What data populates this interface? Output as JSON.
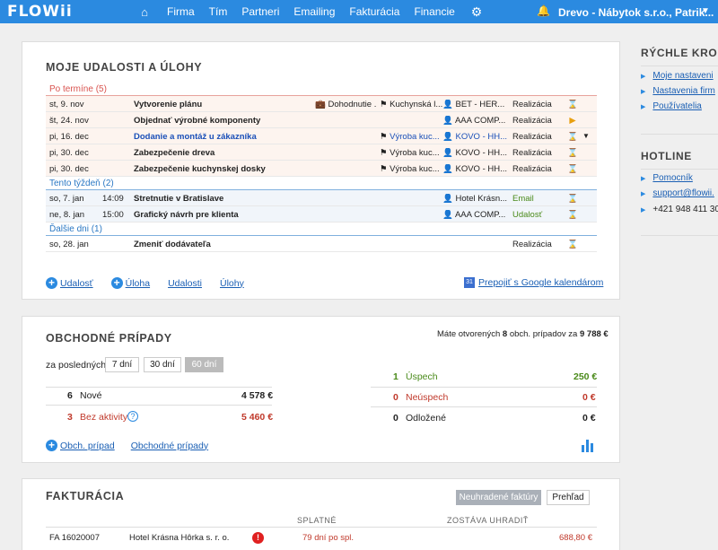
{
  "topbar": {
    "logo": "FLOWii",
    "nav": [
      "Firma",
      "Tím",
      "Partneri",
      "Emailing",
      "Fakturácia",
      "Financie"
    ],
    "company": "Drevo - Nábytok s.r.o., Patrik..."
  },
  "events": {
    "title": "MOJE UDALOSTI A ÚLOHY",
    "sections": [
      {
        "label": "Po termíne (5)"
      },
      {
        "label": "Tento týždeň (2)"
      },
      {
        "label": "Ďalšie dni (1)"
      }
    ],
    "rows": [
      {
        "date": "st, 9. nov",
        "time": "",
        "title": "Vytvorenie plánu",
        "place": "Dohodnutie ...",
        "category": "Kuchynská l...",
        "company": "BET - HER...",
        "type": "Realizácia",
        "status": "hourglass"
      },
      {
        "date": "št, 24. nov",
        "time": "",
        "title": "Objednať výrobné komponenty",
        "place": "",
        "category": "",
        "company": "AAA COMP...",
        "type": "Realizácia",
        "status": "play"
      },
      {
        "date": "pi, 16. dec",
        "time": "",
        "title": "Dodanie a montáž u zákazníka",
        "place": "",
        "category": "Výroba kuc...",
        "company": "KOVO - HH...",
        "type": "Realizácia",
        "status": "hourglass"
      },
      {
        "date": "pi, 30. dec",
        "time": "",
        "title": "Zabezpečenie dreva",
        "place": "",
        "category": "Výroba kuc...",
        "company": "KOVO - HH...",
        "type": "Realizácia",
        "status": "hourglass"
      },
      {
        "date": "pi, 30. dec",
        "time": "",
        "title": "Zabezpečenie kuchynskej dosky",
        "place": "",
        "category": "Výroba kuc...",
        "company": "KOVO - HH...",
        "type": "Realizácia",
        "status": "hourglass"
      },
      {
        "date": "so, 7. jan",
        "time": "14:09",
        "title": "Stretnutie v Bratislave",
        "place": "",
        "category": "",
        "company": "Hotel Krásn...",
        "type": "Email",
        "status": "hourglass"
      },
      {
        "date": "ne, 8. jan",
        "time": "15:00",
        "title": "Grafický návrh pre klienta",
        "place": "",
        "category": "",
        "company": "AAA COMP...",
        "type": "Udalosť",
        "status": "hourglass"
      },
      {
        "date": "so, 28. jan",
        "time": "",
        "title": "Zmeniť dodávateľa",
        "place": "",
        "category": "",
        "company": "",
        "type": "Realizácia",
        "status": "hourglass"
      }
    ],
    "actions": {
      "add_event": "Udalosť",
      "add_task": "Úloha",
      "events_link": "Udalosti",
      "tasks_link": "Úlohy",
      "google": "Prepojiť s Google kalendárom"
    }
  },
  "deals": {
    "title": "OBCHODNÉ PRÍPADY",
    "summary_prefix": "Máte otvorených",
    "summary_count": "8",
    "summary_mid": "obch. prípadov za",
    "summary_total": "9 788 €",
    "period_label": "za posledných",
    "periods": [
      "7 dní",
      "30 dní",
      "60 dní"
    ],
    "stats_left": [
      {
        "count": "6",
        "label": "Nové",
        "value": "4 578 €"
      },
      {
        "count": "3",
        "label": "Bez aktivity",
        "value": "5 460 €"
      }
    ],
    "stats_right": [
      {
        "count": "1",
        "label": "Úspech",
        "value": "250 €"
      },
      {
        "count": "0",
        "label": "Neúspech",
        "value": "0 €"
      },
      {
        "count": "0",
        "label": "Odložené",
        "value": "0 €"
      }
    ],
    "add_label": "Obch. prípad",
    "link_label": "Obchodné prípady"
  },
  "invoicing": {
    "title": "FAKTURÁCIA",
    "btn_unpaid": "Neuhradené faktúry",
    "btn_overview": "Prehľad",
    "col_due": "SPLATNÉ",
    "col_remaining": "ZOSTÁVA UHRADIŤ",
    "rows": [
      {
        "number": "FA 16020007",
        "client": "Hotel Krásna Hôrka s. r. o.",
        "due": "79 dní po spl.",
        "amount": "688,80 €"
      }
    ]
  },
  "sidebar": {
    "quick_title": "RÝCHLE KRO",
    "quick_links": [
      "Moje nastaveni",
      "Nastavenia firm",
      "Používatelia"
    ],
    "hotline_title": "HOTLINE",
    "hotline_links": [
      "Pomocník",
      "support@flowii.",
      "+421 948 411 30"
    ]
  }
}
